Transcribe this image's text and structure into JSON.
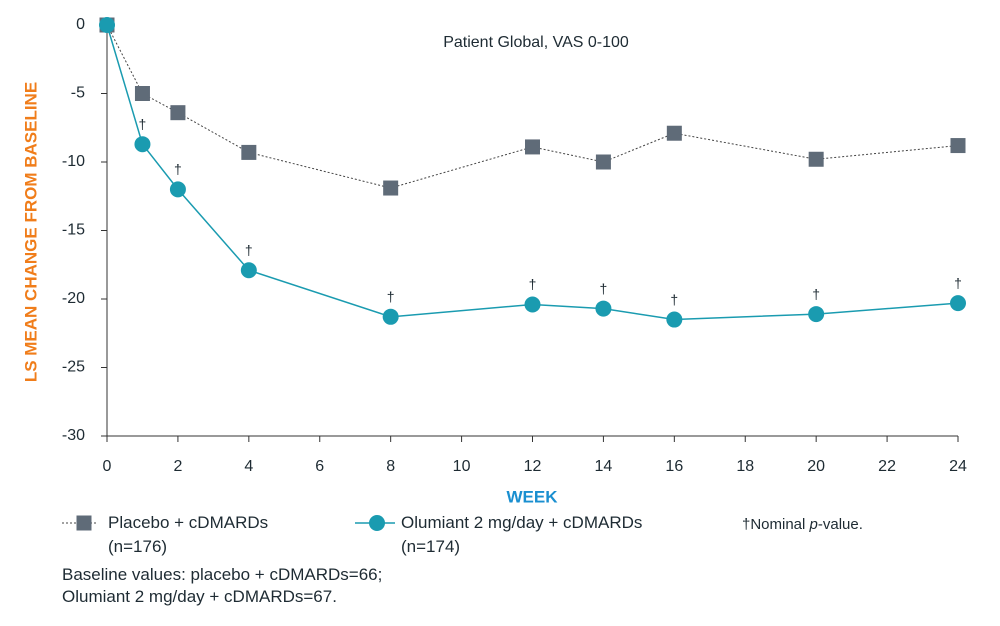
{
  "chart_data": {
    "type": "line",
    "title": "Patient Global, VAS 0-100",
    "xlabel": "WEEK",
    "ylabel": "LS MEAN CHANGE FROM BASELINE",
    "x": [
      0,
      1,
      2,
      4,
      8,
      12,
      14,
      16,
      20,
      24
    ],
    "xlim": [
      0,
      24
    ],
    "xticks": [
      0,
      2,
      4,
      6,
      8,
      10,
      12,
      14,
      16,
      18,
      20,
      22,
      24
    ],
    "ylim": [
      -30,
      0
    ],
    "yticks": [
      0,
      -5,
      -10,
      -15,
      -20,
      -25,
      -30
    ],
    "grid": false,
    "series": [
      {
        "name": "Placebo + cDMARDs (n=176)",
        "color": "#5f6b78",
        "marker": "square",
        "line_style": "dotted",
        "values": [
          0,
          -5.0,
          -6.4,
          -9.3,
          -11.9,
          -8.9,
          -10.0,
          -7.9,
          -9.8,
          -8.8
        ]
      },
      {
        "name": "Olumiant 2 mg/day + cDMARDs (n=174)",
        "color": "#1a9bb0",
        "marker": "circle",
        "line_style": "solid",
        "values": [
          0,
          -8.7,
          -12.0,
          -17.9,
          -21.3,
          -20.4,
          -20.7,
          -21.5,
          -21.1,
          -20.3
        ],
        "point_labels": [
          null,
          "†",
          "†",
          "†",
          "†",
          "†",
          "†",
          "†",
          "†",
          "†"
        ]
      }
    ],
    "footnote": {
      "prefix": "†Nominal ",
      "italic": "p",
      "suffix": "-value."
    },
    "notes": [
      "Baseline values: placebo + cDMARDs=66;",
      "Olumiant 2 mg/day + cDMARDs=67."
    ]
  }
}
